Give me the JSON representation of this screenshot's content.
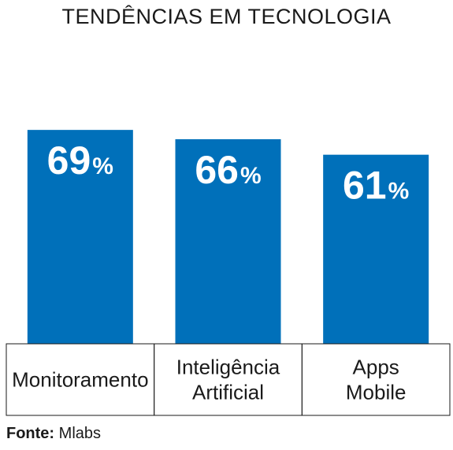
{
  "chart_data": {
    "type": "bar",
    "title": "TENDÊNCIAS EM TECNOLOGIA",
    "categories": [
      [
        "Monitoramento"
      ],
      [
        "Inteligência",
        "Artificial"
      ],
      [
        "Apps",
        "Mobile"
      ]
    ],
    "values": [
      69,
      66,
      61
    ],
    "value_labels": [
      "69",
      "66",
      "61"
    ],
    "value_suffix": "%",
    "ylim": [
      0,
      100
    ],
    "grid": false,
    "legend": "none",
    "bar_color": "#0070BA"
  },
  "source": {
    "label": "Fonte:",
    "text": "Mlabs"
  }
}
